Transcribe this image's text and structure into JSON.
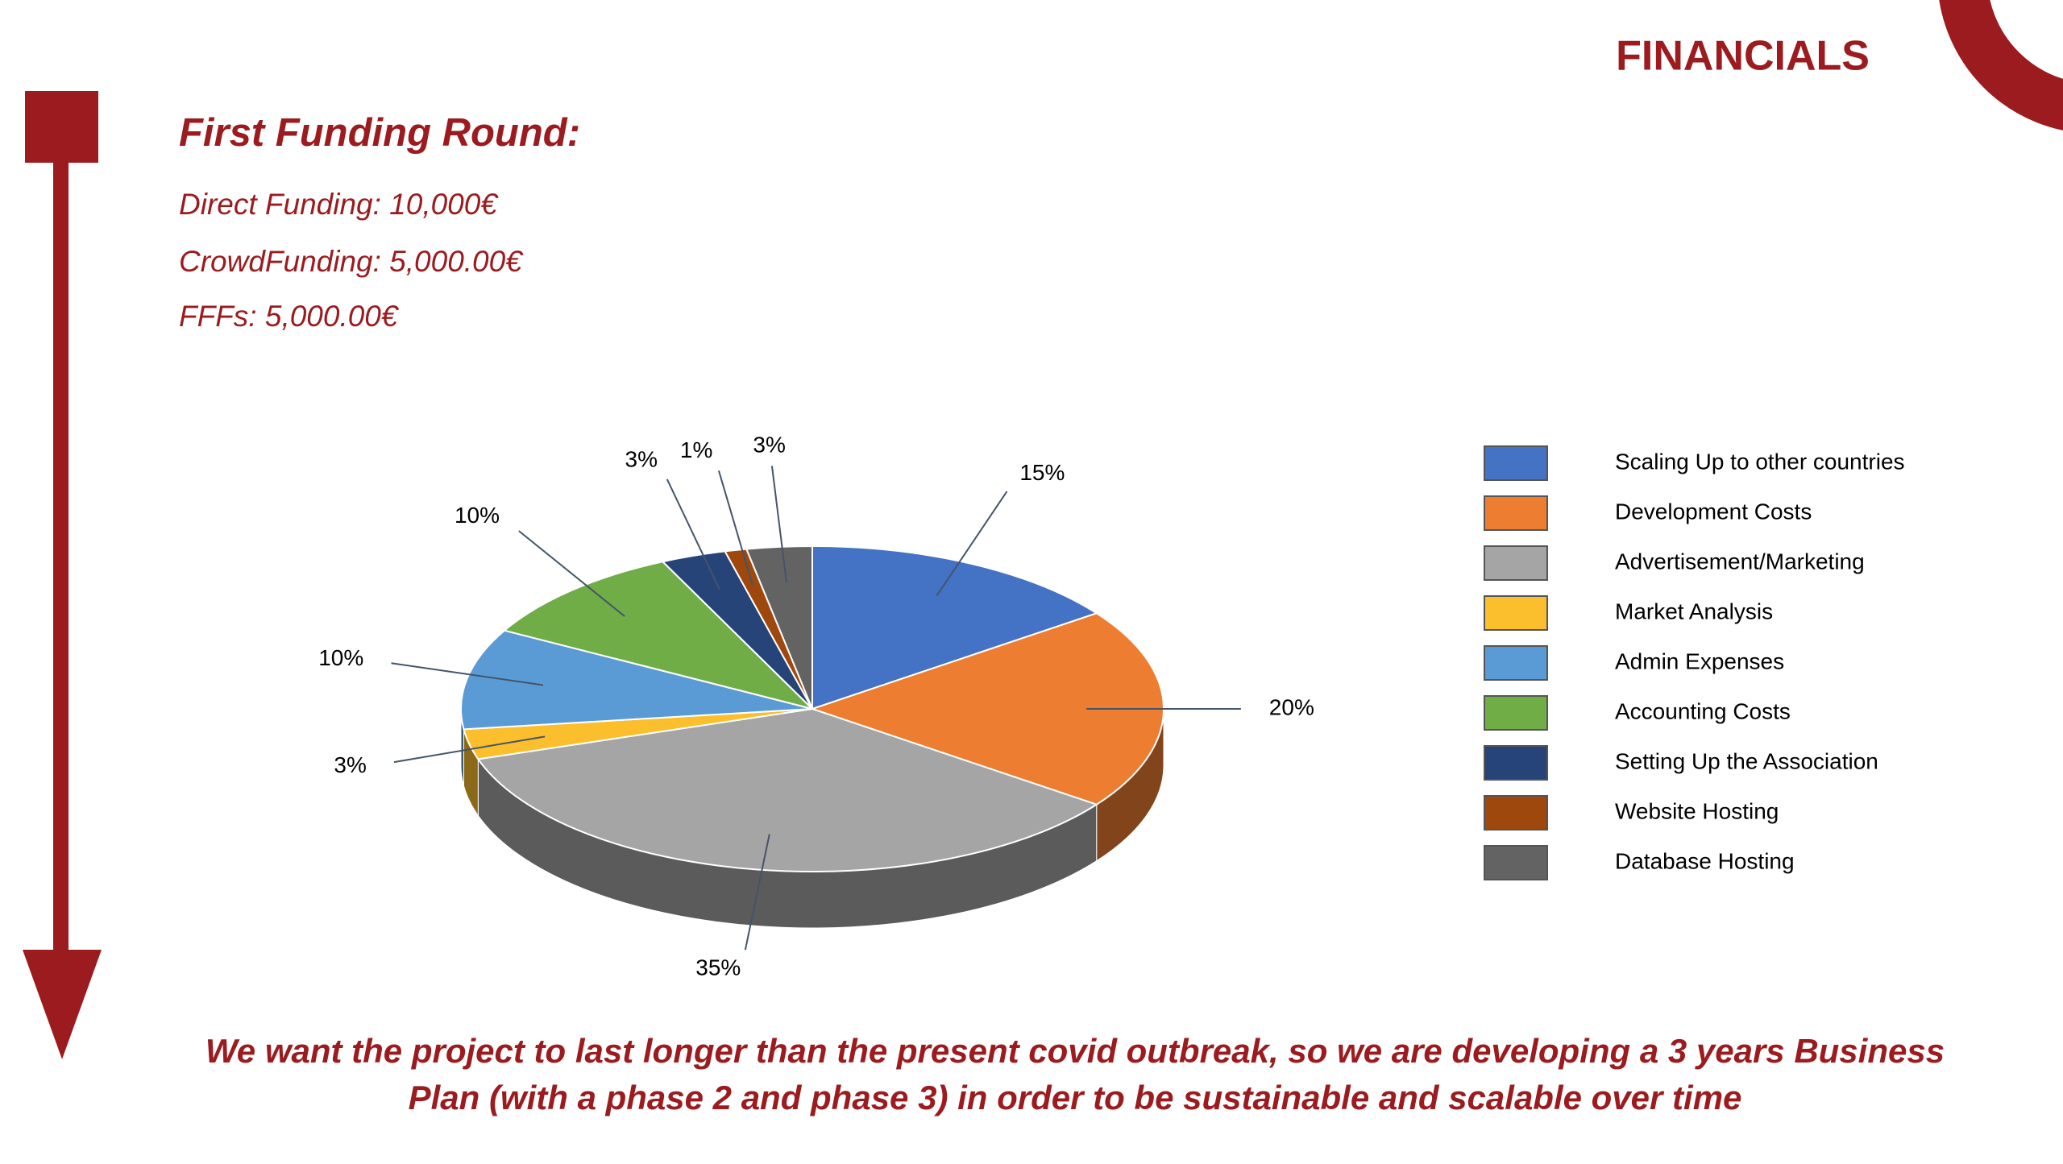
{
  "header": {
    "title": "FINANCIALS"
  },
  "funding": {
    "title": "First Funding Round:",
    "items": [
      "Direct Funding: 10,000€",
      "CrowdFunding: 5,000.00€",
      "FFFs: 5,000.00€"
    ]
  },
  "chart_data": {
    "type": "pie",
    "categories": [
      "Scaling Up to other countries",
      "Development Costs",
      "Advertisement/Marketing",
      "Market Analysis",
      "Admin Expenses",
      "Accounting Costs",
      "Setting Up the Association",
      "Website Hosting",
      "Database Hosting"
    ],
    "values": [
      15,
      20,
      35,
      3,
      10,
      10,
      3,
      1,
      3
    ],
    "value_labels": [
      "15%",
      "20%",
      "35%",
      "3%",
      "10%",
      "10%",
      "3%",
      "1%",
      "3%"
    ],
    "colors": [
      "#4472c4",
      "#ed7d31",
      "#a5a5a5",
      "#fbbf2d",
      "#5b9bd5",
      "#70ad47",
      "#264478",
      "#9e480e",
      "#636363"
    ],
    "legend": "right"
  },
  "footer": {
    "lines": [
      "We want the project to last longer than the present covid outbreak, so we are developing a 3 years Business",
      "Plan (with a phase 2 and phase 3)  in order to be sustainable and scalable over time"
    ]
  }
}
